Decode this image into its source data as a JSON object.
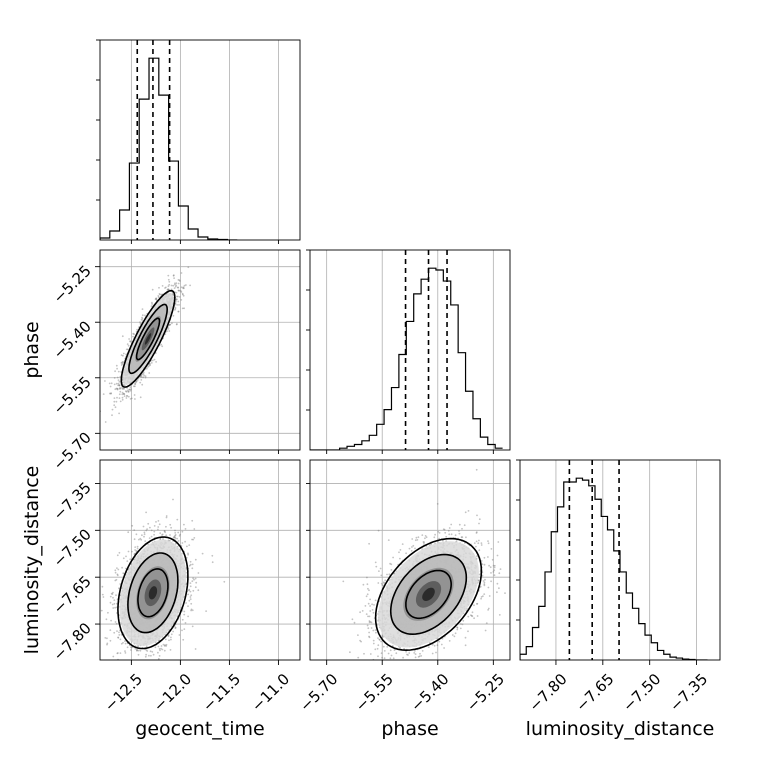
{
  "chart_data": {
    "type": "corner",
    "parameters": [
      "geocent_time",
      "phase",
      "luminosity_distance"
    ],
    "axis_labels": {
      "geocent_time": "geocent_time",
      "phase": "phase",
      "luminosity_distance": "luminosity_distance"
    },
    "ranges": {
      "geocent_time": [
        -12.82,
        -10.78
      ],
      "phase": [
        -5.745,
        -5.205
      ],
      "luminosity_distance": [
        -7.915,
        -7.275
      ]
    },
    "ticks": {
      "geocent_time": {
        "values": [
          -12.5,
          -12.0,
          -11.5,
          -11.0
        ],
        "labels": [
          "−12.5",
          "−12.0",
          "−11.5",
          "−11.0"
        ]
      },
      "phase": {
        "values": [
          -5.7,
          -5.55,
          -5.4,
          -5.25
        ],
        "labels": [
          "−5.70",
          "−5.55",
          "−5.40",
          "−5.25"
        ]
      },
      "luminosity_distance": {
        "values": [
          -7.8,
          -7.65,
          -7.5,
          -7.35
        ],
        "labels": [
          "−7.80",
          "−7.65",
          "−7.50",
          "−7.35"
        ]
      }
    },
    "quantiles": {
      "geocent_time": [
        -12.44,
        -12.28,
        -12.11
      ],
      "phase": [
        -5.487,
        -5.425,
        -5.375
      ],
      "luminosity_distance": [
        -7.757,
        -7.684,
        -7.598
      ]
    },
    "histograms": {
      "geocent_time": {
        "bin_edges": [
          -12.82,
          -12.72,
          -12.62,
          -12.52,
          -12.42,
          -12.32,
          -12.22,
          -12.12,
          -12.02,
          -11.92,
          -11.82,
          -11.72,
          -11.62,
          -11.52,
          -11.42
        ],
        "counts": [
          2,
          9,
          30,
          77,
          141,
          182,
          145,
          79,
          34,
          11,
          3,
          1,
          0.5,
          0
        ]
      },
      "phase": {
        "bin_edges": [
          -5.745,
          -5.725,
          -5.705,
          -5.685,
          -5.665,
          -5.645,
          -5.625,
          -5.605,
          -5.585,
          -5.565,
          -5.545,
          -5.525,
          -5.505,
          -5.485,
          -5.465,
          -5.445,
          -5.425,
          -5.405,
          -5.385,
          -5.365,
          -5.345,
          -5.325,
          -5.305,
          -5.285,
          -5.265,
          -5.245,
          -5.225
        ],
        "counts": [
          0,
          0,
          0,
          0,
          1,
          2,
          3,
          5,
          8,
          14,
          22,
          34,
          52,
          70,
          85,
          93,
          99,
          98,
          92,
          79,
          53,
          32,
          17,
          7,
          3,
          1
        ]
      },
      "luminosity_distance": {
        "bin_edges": [
          -7.915,
          -7.895,
          -7.875,
          -7.855,
          -7.835,
          -7.815,
          -7.795,
          -7.775,
          -7.755,
          -7.735,
          -7.715,
          -7.695,
          -7.675,
          -7.655,
          -7.635,
          -7.615,
          -7.595,
          -7.575,
          -7.555,
          -7.535,
          -7.515,
          -7.495,
          -7.475,
          -7.455,
          -7.435,
          -7.415,
          -7.395,
          -7.375,
          -7.355,
          -7.335,
          -7.315
        ],
        "counts": [
          3,
          7,
          17,
          28,
          46,
          67,
          80,
          93,
          93,
          95,
          94,
          91,
          84,
          75,
          68,
          57,
          46,
          35,
          27,
          19,
          13,
          9,
          5,
          3,
          1.5,
          1,
          0.5,
          0.3,
          0,
          0
        ]
      }
    },
    "pairs": [
      {
        "x": "geocent_time",
        "y": "phase",
        "center": [
          -12.33,
          -5.445
        ],
        "sigma": [
          0.13,
          0.062
        ],
        "rho": 0.86
      },
      {
        "x": "geocent_time",
        "y": "luminosity_distance",
        "center": [
          -12.28,
          -7.7
        ],
        "sigma": [
          0.17,
          0.085
        ],
        "rho": 0.3
      },
      {
        "x": "phase",
        "y": "luminosity_distance",
        "center": [
          -5.425,
          -7.705
        ],
        "sigma": [
          0.068,
          0.085
        ],
        "rho": 0.42
      }
    ],
    "grid": true,
    "colors": {
      "line": "#000000",
      "grid": "#b0b0b0",
      "scatter": "#7a7a7a"
    }
  }
}
